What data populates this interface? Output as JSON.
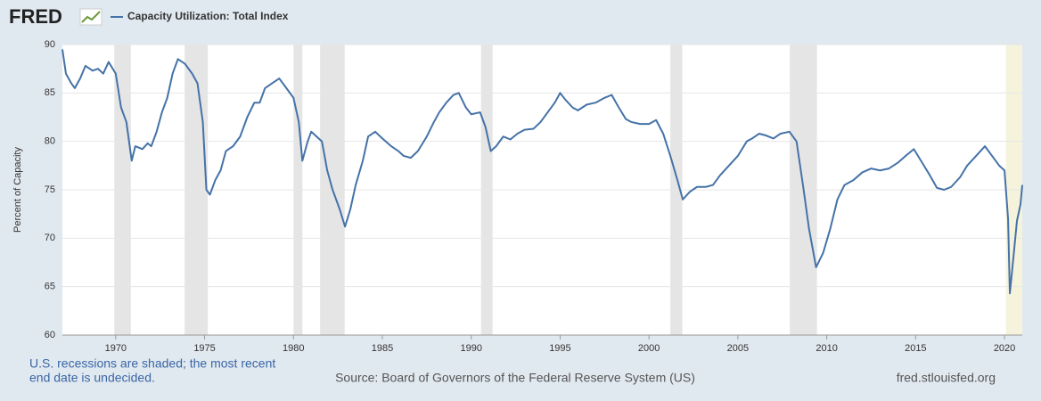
{
  "logo": "FRED",
  "chart_data": {
    "type": "line",
    "ylabel": "Percent of Capacity",
    "footnote": [
      "U.S. recessions are shaded; the most recent",
      "end date is undecided."
    ],
    "source": "Source: Board of Governors of the Federal Reserve System (US)",
    "site": "fred.stlouisfed.org",
    "xlim": [
      1967,
      2021
    ],
    "ylim": [
      60,
      90
    ],
    "xticks": [
      1970,
      1975,
      1980,
      1985,
      1990,
      1995,
      2000,
      2005,
      2010,
      2015,
      2020
    ],
    "yticks": [
      60,
      65,
      70,
      75,
      80,
      85,
      90
    ],
    "grid": true,
    "recessions": [
      [
        1969.92,
        1970.85
      ],
      [
        1973.88,
        1975.18
      ],
      [
        1980.0,
        1980.5
      ],
      [
        1981.5,
        1982.88
      ],
      [
        1990.55,
        1991.2
      ],
      [
        2001.2,
        2001.87
      ],
      [
        2007.92,
        2009.45
      ],
      [
        2020.08,
        null
      ]
    ],
    "x": [
      1967.0,
      1967.2,
      1967.5,
      1967.7,
      1968.0,
      1968.3,
      1968.7,
      1969.0,
      1969.3,
      1969.6,
      1970.0,
      1970.3,
      1970.6,
      1970.9,
      1971.1,
      1971.5,
      1971.8,
      1972.0,
      1972.3,
      1972.6,
      1972.9,
      1973.2,
      1973.5,
      1973.9,
      1974.3,
      1974.6,
      1974.9,
      1975.1,
      1975.3,
      1975.6,
      1975.9,
      1976.2,
      1976.6,
      1977.0,
      1977.4,
      1977.8,
      1978.1,
      1978.4,
      1978.8,
      1979.2,
      1979.6,
      1980.0,
      1980.3,
      1980.5,
      1980.8,
      1981.0,
      1981.3,
      1981.6,
      1981.9,
      1982.2,
      1982.6,
      1982.9,
      1983.2,
      1983.5,
      1983.9,
      1984.2,
      1984.6,
      1985.0,
      1985.5,
      1985.9,
      1986.2,
      1986.6,
      1987.0,
      1987.5,
      1987.9,
      1988.2,
      1988.6,
      1989.0,
      1989.3,
      1989.7,
      1990.0,
      1990.5,
      1990.8,
      1991.1,
      1991.4,
      1991.8,
      1992.2,
      1992.6,
      1993.0,
      1993.5,
      1993.9,
      1994.3,
      1994.7,
      1995.0,
      1995.3,
      1995.7,
      1996.0,
      1996.5,
      1997.0,
      1997.5,
      1997.9,
      1998.3,
      1998.7,
      1999.0,
      1999.5,
      2000.0,
      2000.4,
      2000.8,
      2001.2,
      2001.6,
      2001.9,
      2002.3,
      2002.7,
      2003.2,
      2003.6,
      2004.0,
      2004.5,
      2005.0,
      2005.5,
      2005.8,
      2006.2,
      2006.6,
      2007.0,
      2007.4,
      2007.9,
      2008.3,
      2008.7,
      2009.0,
      2009.4,
      2009.8,
      2010.2,
      2010.6,
      2011.0,
      2011.5,
      2012.0,
      2012.5,
      2013.0,
      2013.5,
      2014.0,
      2014.5,
      2014.9,
      2015.3,
      2015.8,
      2016.2,
      2016.6,
      2017.0,
      2017.5,
      2017.9,
      2018.3,
      2018.9,
      2019.3,
      2019.7,
      2020.0,
      2020.2,
      2020.3,
      2020.5,
      2020.7,
      2020.9,
      2021.0
    ],
    "series": [
      {
        "name": "Capacity Utilization: Total Index",
        "color": "#4572a7",
        "values": [
          89.5,
          87,
          86,
          85.5,
          86.5,
          87.8,
          87.3,
          87.5,
          87,
          88.2,
          87,
          83.5,
          82,
          78,
          79.5,
          79.2,
          79.8,
          79.5,
          81,
          83,
          84.5,
          87,
          88.5,
          88,
          87,
          86,
          82,
          75,
          74.5,
          76,
          77,
          79,
          79.5,
          80.5,
          82.5,
          84,
          84,
          85.5,
          86,
          86.5,
          85.5,
          84.5,
          82,
          78,
          80,
          81,
          80.5,
          80,
          77,
          75,
          73,
          71.2,
          73,
          75.5,
          78,
          80.5,
          81,
          80.3,
          79.5,
          79,
          78.5,
          78.3,
          79,
          80.5,
          82,
          83,
          84,
          84.8,
          85,
          83.5,
          82.8,
          83,
          81.5,
          79,
          79.5,
          80.5,
          80.2,
          80.8,
          81.2,
          81.3,
          82,
          83,
          84,
          85,
          84.3,
          83.5,
          83.2,
          83.8,
          84,
          84.5,
          84.8,
          83.5,
          82.3,
          82,
          81.8,
          81.8,
          82.2,
          80.8,
          78.5,
          76,
          74,
          74.8,
          75.3,
          75.3,
          75.5,
          76.5,
          77.5,
          78.5,
          80,
          80.3,
          80.8,
          80.6,
          80.3,
          80.8,
          81,
          80,
          75,
          71,
          67,
          68.5,
          71,
          74,
          75.5,
          76,
          76.8,
          77.2,
          77,
          77.2,
          77.8,
          78.6,
          79.2,
          78,
          76.5,
          75.2,
          75,
          75.3,
          76.3,
          77.5,
          78.3,
          79.5,
          78.5,
          77.5,
          77,
          72,
          64.3,
          68,
          71.8,
          73.5,
          75.5
        ]
      }
    ]
  }
}
